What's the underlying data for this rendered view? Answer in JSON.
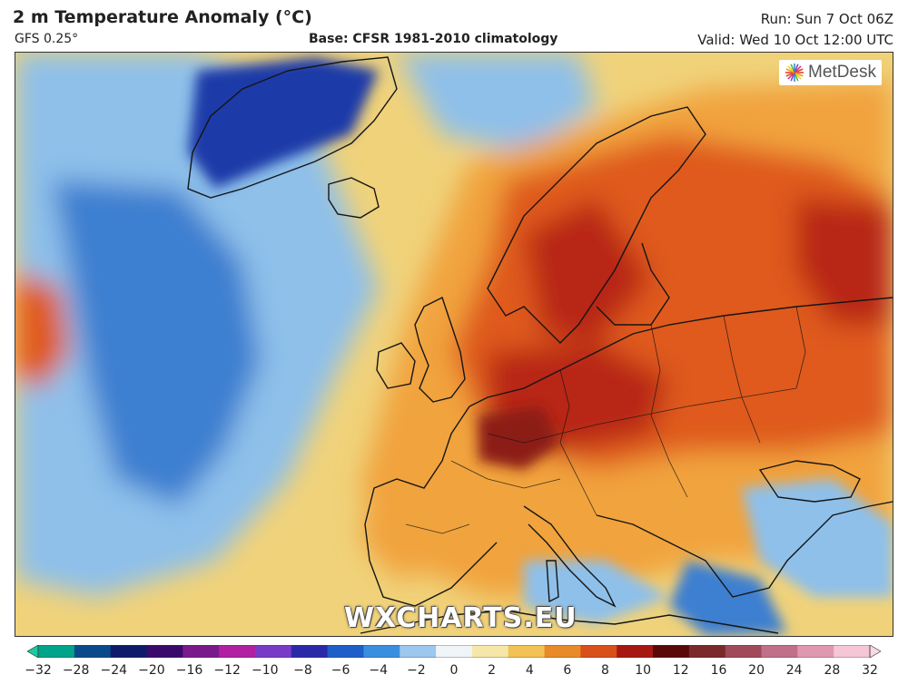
{
  "header": {
    "title": "2 m Temperature Anomaly (°C)",
    "model": "GFS 0.25°",
    "base": "Base: CFSR 1981-2010 climatology",
    "run": "Run: Sun 7 Oct 06Z",
    "valid": "Valid: Wed 10 Oct 12:00 UTC"
  },
  "logo": {
    "text": "MetDesk",
    "icon": "metdesk-starburst-icon"
  },
  "watermark": "WXCHARTS.EU",
  "colorbar": {
    "ticks": [
      "−32",
      "−28",
      "−24",
      "−20",
      "−16",
      "−12",
      "−10",
      "−8",
      "−6",
      "−4",
      "−2",
      "0",
      "2",
      "4",
      "6",
      "8",
      "10",
      "12",
      "16",
      "20",
      "24",
      "28",
      "32"
    ],
    "colors": [
      "#00a48a",
      "#0a4a8a",
      "#101a6a",
      "#3a0a6a",
      "#7a1a8a",
      "#b020a0",
      "#7a3ac8",
      "#2a2aa8",
      "#1e5ec8",
      "#3a8ee0",
      "#9cc8ee",
      "#eef4f8",
      "#f6e6a8",
      "#f2c254",
      "#e98a28",
      "#d8501a",
      "#a81812",
      "#5a0808",
      "#7a2a2a",
      "#a04a5a",
      "#c07088",
      "#e098b0",
      "#f4c6d6"
    ],
    "extend_colors": {
      "min": "#1ec8a0",
      "max": "#f8d8e4"
    }
  },
  "map_colors": {
    "ocean_base": "#f0d27a",
    "cold_mid": "#8ec0ea",
    "cold_deep": "#3d7fd0",
    "greenland_cold": "#1a3aa8",
    "land_warm": "#f1a33c",
    "land_hot": "#df5a1d",
    "land_very_hot": "#b82814",
    "core_hot": "#8c1a12",
    "coast_line": "#151515"
  }
}
